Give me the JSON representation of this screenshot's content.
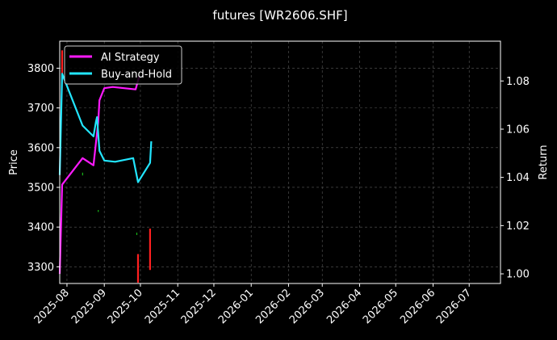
{
  "chart_data": {
    "type": "line",
    "title": "futures [WR2606.SHF]",
    "ylabel": "Price",
    "y2label": "Return",
    "x_ticks": [
      "2025-08",
      "2025-09",
      "2025-10",
      "2025-11",
      "2025-12",
      "2026-01",
      "2026-02",
      "2026-03",
      "2026-04",
      "2026-05",
      "2026-06",
      "2026-07"
    ],
    "xlim": [
      "2025-07-26",
      "2026-07-27"
    ],
    "y_ticks": [
      3300,
      3400,
      3500,
      3600,
      3700,
      3800
    ],
    "ylim": [
      3258,
      3868
    ],
    "y2_ticks": [
      "1.00",
      "1.02",
      "1.04",
      "1.06",
      "1.08"
    ],
    "y2lim": [
      0.996,
      1.0965
    ],
    "grid": true,
    "legend_position": "upper-left",
    "colors": {
      "background": "#000000",
      "ai_strategy": "#ff1aff",
      "buy_and_hold": "#22e6ff",
      "candle_up": "#ff2020",
      "candle_down": "#18b818",
      "grid": "#5a5a5a",
      "axes": "#ffffff"
    },
    "candles": [
      {
        "date": "2025-07-28",
        "low": 3778,
        "high": 3845,
        "dir": "up"
      },
      {
        "date": "2025-08-14",
        "low": 3530,
        "high": 3537,
        "dir": "down"
      },
      {
        "date": "2025-08-27",
        "low": 3438,
        "high": 3443,
        "dir": "down"
      },
      {
        "date": "2025-09-28",
        "low": 3380,
        "high": 3386,
        "dir": "down"
      },
      {
        "date": "2025-09-29",
        "low": 3260,
        "high": 3332,
        "dir": "up"
      },
      {
        "date": "2025-10-09",
        "low": 3292,
        "high": 3396,
        "dir": "up"
      }
    ],
    "series": [
      {
        "name": "AI Strategy",
        "axis": "right",
        "points": [
          [
            "2025-07-26",
            1.0
          ],
          [
            "2025-07-28",
            1.037
          ],
          [
            "2025-08-14",
            1.048
          ],
          [
            "2025-08-23",
            1.045
          ],
          [
            "2025-08-27",
            1.063
          ],
          [
            "2025-08-28",
            1.072
          ],
          [
            "2025-09-01",
            1.077
          ],
          [
            "2025-09-08",
            1.0775
          ],
          [
            "2025-09-27",
            1.0765
          ],
          [
            "2025-09-30",
            1.082
          ]
        ]
      },
      {
        "name": "Buy-and-Hold",
        "axis": "right",
        "points": [
          [
            "2025-07-26",
            1.041
          ],
          [
            "2025-07-28",
            1.083
          ],
          [
            "2025-08-14",
            1.0615
          ],
          [
            "2025-08-23",
            1.057
          ],
          [
            "2025-08-25",
            1.063
          ],
          [
            "2025-08-26",
            1.065
          ],
          [
            "2025-08-28",
            1.051
          ],
          [
            "2025-09-01",
            1.047
          ],
          [
            "2025-09-10",
            1.0465
          ],
          [
            "2025-09-25",
            1.048
          ],
          [
            "2025-09-29",
            1.038
          ],
          [
            "2025-10-09",
            1.046
          ],
          [
            "2025-10-10",
            1.055
          ]
        ]
      }
    ]
  }
}
